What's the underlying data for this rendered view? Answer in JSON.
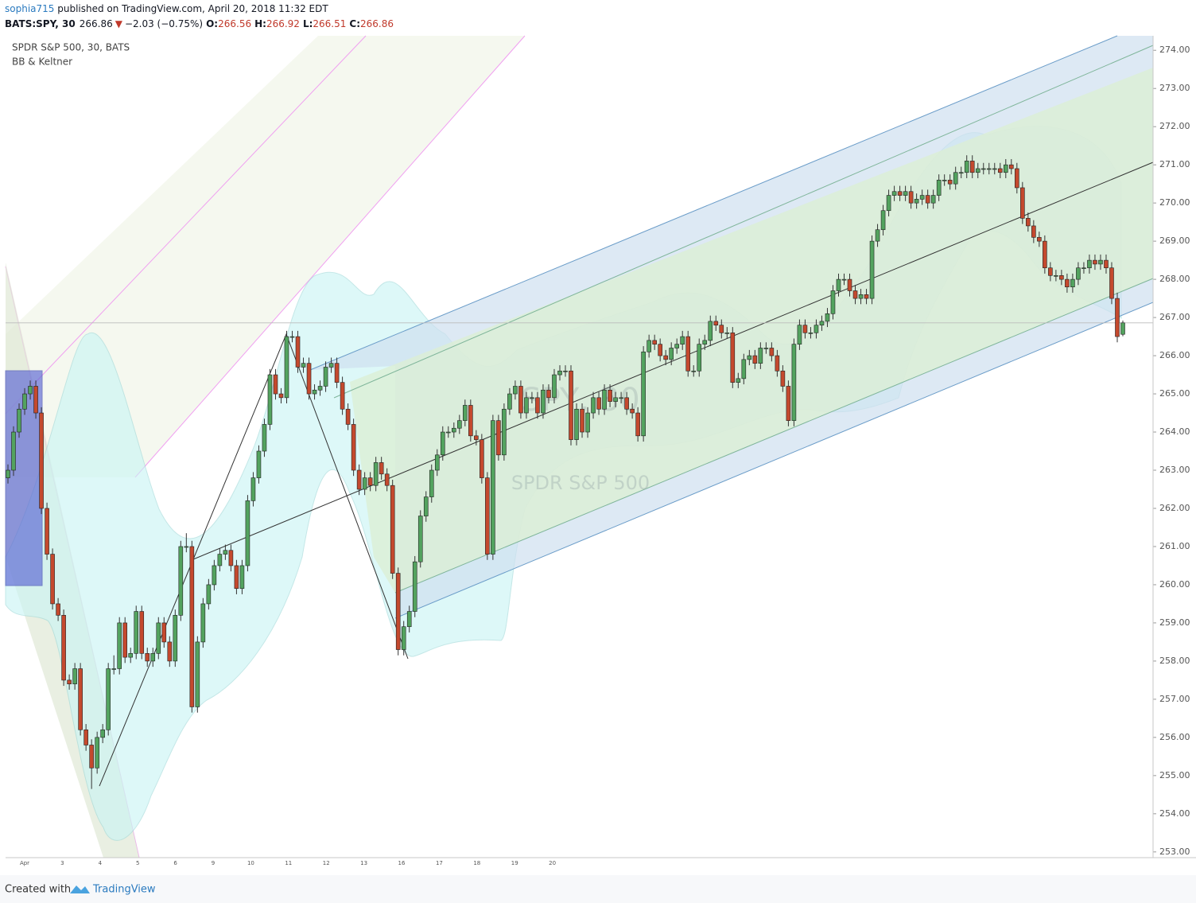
{
  "header": {
    "author": "sophia715",
    "published": " published on TradingView.com, April 20, 2018 11:32 EDT",
    "symbol": "BATS:SPY, 30",
    "arrow": "▼",
    "change": "−2.03 (−0.75%)",
    "o": "O:",
    "h": "H:",
    "l": "L:",
    "c": "C:"
  },
  "legend": {
    "line1": "SPDR S&P 500, 30, BATS",
    "line2": "BB & Keltner"
  },
  "watermark": {
    "line1": "SPY, 30",
    "line2": "SPDR S&P 500"
  },
  "footer": {
    "created": "Created with",
    "brand": "TradingView"
  },
  "chart_data": {
    "type": "candlestick",
    "up_color": "#53a35f",
    "down_color": "#c4492e",
    "xaxis_labels": [
      "Apr",
      "3",
      "4",
      "5",
      "6",
      "9",
      "10",
      "11",
      "12",
      "13",
      "16",
      "17",
      "18",
      "19",
      "20"
    ],
    "ylim": [
      252.85,
      274.38
    ],
    "yticks": [
      {
        "value": 253,
        "label": "253.00"
      },
      {
        "value": 254,
        "label": "254.00"
      },
      {
        "value": 255,
        "label": "255.00"
      },
      {
        "value": 256,
        "label": "256.00"
      },
      {
        "value": 257,
        "label": "257.00"
      },
      {
        "value": 258,
        "label": "258.00"
      },
      {
        "value": 259,
        "label": "259.00"
      },
      {
        "value": 260,
        "label": "260.00"
      },
      {
        "value": 261,
        "label": "261.00"
      },
      {
        "value": 262,
        "label": "262.00"
      },
      {
        "value": 263,
        "label": "263.00"
      },
      {
        "value": 264,
        "label": "264.00"
      },
      {
        "value": 265,
        "label": "265.00"
      },
      {
        "value": 266,
        "label": "266.00"
      },
      {
        "value": 267,
        "label": "267.00"
      },
      {
        "value": 268,
        "label": "268.00"
      },
      {
        "value": 269,
        "label": "269.00"
      },
      {
        "value": 270,
        "label": "270.00"
      },
      {
        "value": 271,
        "label": "271.00"
      },
      {
        "value": 272,
        "label": "272.00"
      },
      {
        "value": 273,
        "label": "273.00"
      },
      {
        "value": 274,
        "label": "274.00"
      }
    ],
    "ohlc": [
      [
        262.8,
        263.15,
        262.65,
        263.0
      ],
      [
        263.0,
        264.15,
        262.85,
        264.0
      ],
      [
        264.0,
        264.75,
        263.85,
        264.6
      ],
      [
        264.6,
        265.15,
        264.45,
        265.0
      ],
      [
        265.0,
        265.35,
        264.85,
        265.2
      ],
      [
        265.2,
        265.35,
        264.35,
        264.5
      ],
      [
        264.5,
        264.65,
        261.85,
        262.0
      ],
      [
        262.0,
        262.15,
        260.65,
        260.8
      ],
      [
        260.8,
        260.95,
        259.35,
        259.5
      ],
      [
        259.5,
        259.65,
        259.05,
        259.2
      ],
      [
        259.2,
        259.35,
        257.35,
        257.5
      ],
      [
        257.5,
        257.65,
        257.25,
        257.4
      ],
      [
        257.4,
        257.95,
        257.25,
        257.8
      ],
      [
        257.8,
        257.95,
        256.05,
        256.2
      ],
      [
        256.2,
        256.35,
        255.65,
        255.8
      ],
      [
        255.8,
        255.95,
        254.65,
        255.2
      ],
      [
        255.2,
        256.15,
        255.05,
        256.0
      ],
      [
        256.0,
        256.35,
        255.85,
        256.2
      ],
      [
        256.2,
        257.95,
        256.05,
        257.8
      ],
      [
        257.8,
        258.15,
        257.65,
        257.8
      ],
      [
        257.8,
        259.15,
        257.65,
        259.0
      ],
      [
        259.0,
        259.15,
        257.95,
        258.1
      ],
      [
        258.1,
        258.35,
        257.95,
        258.2
      ],
      [
        258.2,
        259.45,
        258.05,
        259.3
      ],
      [
        259.3,
        259.45,
        258.05,
        258.2
      ],
      [
        258.2,
        258.35,
        257.85,
        258.0
      ],
      [
        258.0,
        258.35,
        257.85,
        258.2
      ],
      [
        258.2,
        259.15,
        258.05,
        259.0
      ],
      [
        259.0,
        259.15,
        258.35,
        258.5
      ],
      [
        258.5,
        258.65,
        257.85,
        258.0
      ],
      [
        258.0,
        259.35,
        257.85,
        259.2
      ],
      [
        259.2,
        261.15,
        259.05,
        261.0
      ],
      [
        261.0,
        261.35,
        260.85,
        261.0
      ],
      [
        261.0,
        261.15,
        256.65,
        256.8
      ],
      [
        256.8,
        258.65,
        256.65,
        258.5
      ],
      [
        258.5,
        259.65,
        258.35,
        259.5
      ],
      [
        259.5,
        260.15,
        259.35,
        260.0
      ],
      [
        260.0,
        260.65,
        259.85,
        260.5
      ],
      [
        260.5,
        260.95,
        260.35,
        260.8
      ],
      [
        260.8,
        261.05,
        260.65,
        260.9
      ],
      [
        260.9,
        261.05,
        260.35,
        260.5
      ],
      [
        260.5,
        260.65,
        259.75,
        259.9
      ],
      [
        259.9,
        260.65,
        259.75,
        260.5
      ],
      [
        260.5,
        262.35,
        260.35,
        262.2
      ],
      [
        262.2,
        262.95,
        262.05,
        262.8
      ],
      [
        262.8,
        263.65,
        262.65,
        263.5
      ],
      [
        263.5,
        264.35,
        263.35,
        264.2
      ],
      [
        264.2,
        265.65,
        264.05,
        265.5
      ],
      [
        265.5,
        265.65,
        264.85,
        265.0
      ],
      [
        265.0,
        265.15,
        264.75,
        264.9
      ],
      [
        264.9,
        266.65,
        264.75,
        266.5
      ],
      [
        266.5,
        266.65,
        266.35,
        266.5
      ],
      [
        266.5,
        266.65,
        265.55,
        265.7
      ],
      [
        265.7,
        265.95,
        265.55,
        265.8
      ],
      [
        265.8,
        265.95,
        264.85,
        265.0
      ],
      [
        265.0,
        265.25,
        264.85,
        265.1
      ],
      [
        265.1,
        265.35,
        264.95,
        265.2
      ],
      [
        265.2,
        265.85,
        265.05,
        265.7
      ],
      [
        265.7,
        265.95,
        265.55,
        265.8
      ],
      [
        265.8,
        265.95,
        265.15,
        265.3
      ],
      [
        265.3,
        265.45,
        264.45,
        264.6
      ],
      [
        264.6,
        264.75,
        264.05,
        264.2
      ],
      [
        264.2,
        264.35,
        262.85,
        263.0
      ],
      [
        263.0,
        263.15,
        262.35,
        262.5
      ],
      [
        262.5,
        262.95,
        262.35,
        262.8
      ],
      [
        262.8,
        262.95,
        262.45,
        262.6
      ],
      [
        262.6,
        263.35,
        262.45,
        263.2
      ],
      [
        263.2,
        263.35,
        262.75,
        262.9
      ],
      [
        262.9,
        263.05,
        262.45,
        262.6
      ],
      [
        262.6,
        262.75,
        260.15,
        260.3
      ],
      [
        260.3,
        260.45,
        258.15,
        258.3
      ],
      [
        258.3,
        259.05,
        258.15,
        258.9
      ],
      [
        258.9,
        259.45,
        258.75,
        259.3
      ],
      [
        259.3,
        260.75,
        259.15,
        260.6
      ],
      [
        260.6,
        261.95,
        260.45,
        261.8
      ],
      [
        261.8,
        262.45,
        261.65,
        262.3
      ],
      [
        262.3,
        263.15,
        262.15,
        263.0
      ],
      [
        263.0,
        263.55,
        262.85,
        263.4
      ],
      [
        263.4,
        264.15,
        263.25,
        264.0
      ],
      [
        264.0,
        264.15,
        263.85,
        264.0
      ],
      [
        264.0,
        264.25,
        263.85,
        264.1
      ],
      [
        264.1,
        264.45,
        263.95,
        264.3
      ],
      [
        264.3,
        264.85,
        264.15,
        264.7
      ],
      [
        264.7,
        264.85,
        263.75,
        263.9
      ],
      [
        263.9,
        264.05,
        263.65,
        263.8
      ],
      [
        263.8,
        263.95,
        262.65,
        262.8
      ],
      [
        262.8,
        262.95,
        260.65,
        260.8
      ],
      [
        260.8,
        264.45,
        260.65,
        264.3
      ],
      [
        264.3,
        264.45,
        263.25,
        263.4
      ],
      [
        263.4,
        264.75,
        263.25,
        264.6
      ],
      [
        264.6,
        265.15,
        264.45,
        265.0
      ],
      [
        265.0,
        265.35,
        264.85,
        265.2
      ],
      [
        265.2,
        265.35,
        264.35,
        264.5
      ],
      [
        264.5,
        265.05,
        264.35,
        264.9
      ],
      [
        264.9,
        265.05,
        264.75,
        264.9
      ],
      [
        264.9,
        265.05,
        264.35,
        264.5
      ],
      [
        264.5,
        265.25,
        264.35,
        265.1
      ],
      [
        265.1,
        265.25,
        264.75,
        264.9
      ],
      [
        264.9,
        265.65,
        264.75,
        265.5
      ],
      [
        265.5,
        265.75,
        265.35,
        265.6
      ],
      [
        265.6,
        265.75,
        265.45,
        265.6
      ],
      [
        265.6,
        265.75,
        263.65,
        263.8
      ],
      [
        263.8,
        264.75,
        263.65,
        264.6
      ],
      [
        264.6,
        264.75,
        263.85,
        264.0
      ],
      [
        264.0,
        264.65,
        263.85,
        264.5
      ],
      [
        264.5,
        265.05,
        264.35,
        264.9
      ],
      [
        264.9,
        265.05,
        264.45,
        264.6
      ],
      [
        264.6,
        265.25,
        264.45,
        265.1
      ],
      [
        265.1,
        265.25,
        264.65,
        264.8
      ],
      [
        264.8,
        265.05,
        264.65,
        264.9
      ],
      [
        264.9,
        265.05,
        264.75,
        264.9
      ],
      [
        264.9,
        265.05,
        264.45,
        264.6
      ],
      [
        264.6,
        264.75,
        264.35,
        264.5
      ],
      [
        264.5,
        264.65,
        263.75,
        263.9
      ],
      [
        263.9,
        266.25,
        263.75,
        266.1
      ],
      [
        266.1,
        266.55,
        265.95,
        266.4
      ],
      [
        266.4,
        266.55,
        266.15,
        266.3
      ],
      [
        266.3,
        266.45,
        265.85,
        266.0
      ],
      [
        266.0,
        266.15,
        265.75,
        265.9
      ],
      [
        265.9,
        266.35,
        265.75,
        266.2
      ],
      [
        266.2,
        266.45,
        266.05,
        266.3
      ],
      [
        266.3,
        266.65,
        266.15,
        266.5
      ],
      [
        266.5,
        266.65,
        265.45,
        265.6
      ],
      [
        265.6,
        265.75,
        265.45,
        265.6
      ],
      [
        265.6,
        266.45,
        265.45,
        266.3
      ],
      [
        266.3,
        266.55,
        266.15,
        266.4
      ],
      [
        266.4,
        267.05,
        266.25,
        266.9
      ],
      [
        266.9,
        267.05,
        266.65,
        266.8
      ],
      [
        266.8,
        266.95,
        266.45,
        266.6
      ],
      [
        266.6,
        266.75,
        266.45,
        266.6
      ],
      [
        266.6,
        266.75,
        265.15,
        265.3
      ],
      [
        265.3,
        265.55,
        265.15,
        265.4
      ],
      [
        265.4,
        266.05,
        265.25,
        265.9
      ],
      [
        265.9,
        266.15,
        265.75,
        266.0
      ],
      [
        266.0,
        266.15,
        265.65,
        265.8
      ],
      [
        265.8,
        266.35,
        265.65,
        266.2
      ],
      [
        266.2,
        266.35,
        266.05,
        266.2
      ],
      [
        266.2,
        266.35,
        265.85,
        266.0
      ],
      [
        266.0,
        266.15,
        265.45,
        265.6
      ],
      [
        265.6,
        265.75,
        265.05,
        265.2
      ],
      [
        265.2,
        265.35,
        264.15,
        264.3
      ],
      [
        264.3,
        266.45,
        264.15,
        266.3
      ],
      [
        266.3,
        266.95,
        266.15,
        266.8
      ],
      [
        266.8,
        266.95,
        266.45,
        266.6
      ],
      [
        266.6,
        266.75,
        266.45,
        266.6
      ],
      [
        266.6,
        266.95,
        266.45,
        266.8
      ],
      [
        266.8,
        267.05,
        266.65,
        266.9
      ],
      [
        266.9,
        267.25,
        266.75,
        267.1
      ],
      [
        267.1,
        267.85,
        266.95,
        267.7
      ],
      [
        267.7,
        268.15,
        267.55,
        268.0
      ],
      [
        268.0,
        268.15,
        267.85,
        268.0
      ],
      [
        268.0,
        268.15,
        267.55,
        267.7
      ],
      [
        267.7,
        267.85,
        267.35,
        267.5
      ],
      [
        267.5,
        267.75,
        267.35,
        267.6
      ],
      [
        267.6,
        267.75,
        267.35,
        267.5
      ],
      [
        267.5,
        269.15,
        267.35,
        269.0
      ],
      [
        269.0,
        269.45,
        268.85,
        269.3
      ],
      [
        269.3,
        269.95,
        269.15,
        269.8
      ],
      [
        269.8,
        270.35,
        269.65,
        270.2
      ],
      [
        270.2,
        270.45,
        270.05,
        270.3
      ],
      [
        270.3,
        270.45,
        270.05,
        270.2
      ],
      [
        270.2,
        270.45,
        270.05,
        270.3
      ],
      [
        270.3,
        270.45,
        269.85,
        270.0
      ],
      [
        270.0,
        270.25,
        269.85,
        270.1
      ],
      [
        270.1,
        270.35,
        269.95,
        270.2
      ],
      [
        270.2,
        270.35,
        269.85,
        270.0
      ],
      [
        270.0,
        270.35,
        269.85,
        270.2
      ],
      [
        270.2,
        270.75,
        270.05,
        270.6
      ],
      [
        270.6,
        270.75,
        270.45,
        270.6
      ],
      [
        270.6,
        270.75,
        270.35,
        270.5
      ],
      [
        270.5,
        270.95,
        270.35,
        270.8
      ],
      [
        270.8,
        270.95,
        270.65,
        270.8
      ],
      [
        270.8,
        271.25,
        270.65,
        271.1
      ],
      [
        271.1,
        271.25,
        270.65,
        270.8
      ],
      [
        270.8,
        271.05,
        270.65,
        270.9
      ],
      [
        270.9,
        271.05,
        270.75,
        270.9
      ],
      [
        270.9,
        271.05,
        270.75,
        270.9
      ],
      [
        270.9,
        271.05,
        270.75,
        270.9
      ],
      [
        270.9,
        271.05,
        270.65,
        270.8
      ],
      [
        270.8,
        271.15,
        270.65,
        271.0
      ],
      [
        271.0,
        271.15,
        270.75,
        270.9
      ],
      [
        270.9,
        271.05,
        270.25,
        270.4
      ],
      [
        270.4,
        270.55,
        269.45,
        269.6
      ],
      [
        269.6,
        269.75,
        269.25,
        269.4
      ],
      [
        269.4,
        269.55,
        268.95,
        269.1
      ],
      [
        269.1,
        269.25,
        268.85,
        269.0
      ],
      [
        269.0,
        269.15,
        268.15,
        268.3
      ],
      [
        268.3,
        268.45,
        267.95,
        268.1
      ],
      [
        268.1,
        268.25,
        267.95,
        268.1
      ],
      [
        268.1,
        268.25,
        267.85,
        268.0
      ],
      [
        268.0,
        268.15,
        267.65,
        267.8
      ],
      [
        267.8,
        268.15,
        267.65,
        268.0
      ],
      [
        268.0,
        268.45,
        267.85,
        268.3
      ],
      [
        268.3,
        268.45,
        268.15,
        268.3
      ],
      [
        268.3,
        268.65,
        268.15,
        268.5
      ],
      [
        268.5,
        268.65,
        268.25,
        268.4
      ],
      [
        268.4,
        268.65,
        268.25,
        268.5
      ],
      [
        268.5,
        268.65,
        268.15,
        268.3
      ],
      [
        268.3,
        268.45,
        267.35,
        267.5
      ],
      [
        267.5,
        267.65,
        266.35,
        266.5
      ],
      [
        266.56,
        266.92,
        266.51,
        266.86
      ]
    ]
  }
}
